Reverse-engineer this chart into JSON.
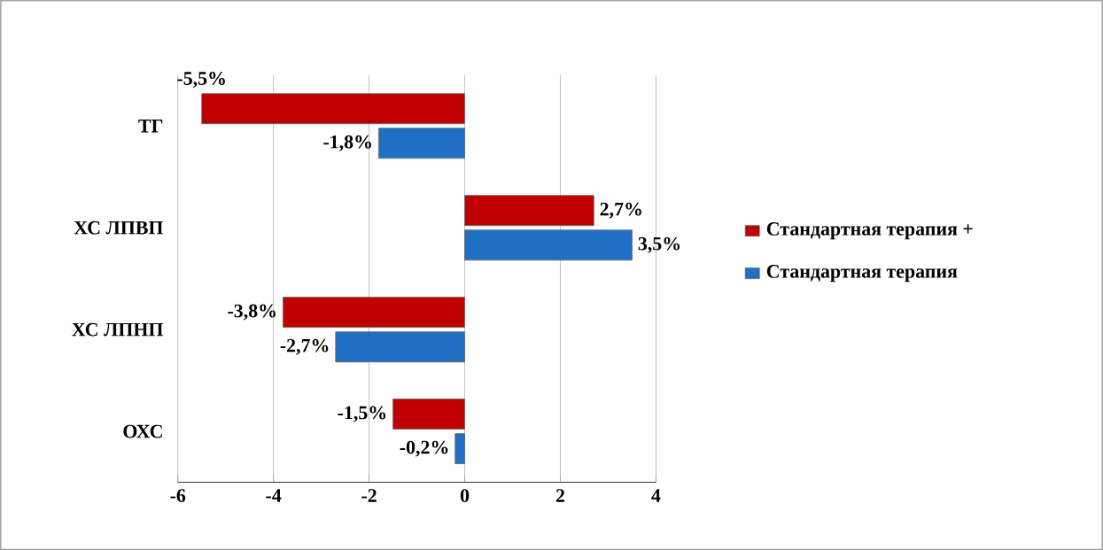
{
  "chart_data": {
    "type": "bar",
    "orientation": "horizontal",
    "categories": [
      "ТГ",
      "ХС ЛПВП",
      "ХС ЛПНП",
      "ОХС"
    ],
    "series": [
      {
        "name": "Стандартная терапия +",
        "color": "#c00000",
        "values": [
          -5.5,
          2.7,
          -3.8,
          -1.5
        ],
        "value_labels": [
          "-5,5%",
          "2,7%",
          "-3,8%",
          "-1,5%"
        ]
      },
      {
        "name": "Стандартная терапия",
        "color": "#1f6fc5",
        "values": [
          -1.8,
          3.5,
          -2.7,
          -0.2
        ],
        "value_labels": [
          "-1,8%",
          "3,5%",
          "-2,7%",
          "-0,2%"
        ]
      }
    ],
    "xlim": [
      -6,
      4
    ],
    "xticks": [
      -6,
      -4,
      -2,
      0,
      2,
      4
    ],
    "grid": "x",
    "legend": "right"
  }
}
